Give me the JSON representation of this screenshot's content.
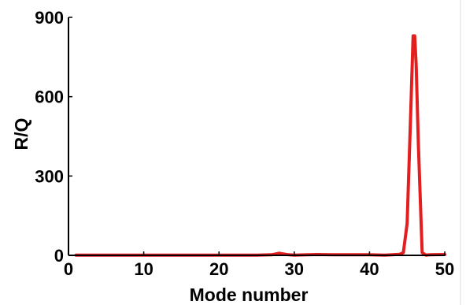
{
  "chart_data": {
    "type": "line",
    "title": "",
    "xlabel": "Mode number",
    "ylabel": "R/Q",
    "xlim": [
      0,
      50
    ],
    "ylim": [
      0,
      900
    ],
    "x_ticks": [
      0,
      10,
      20,
      30,
      40,
      50
    ],
    "y_ticks": [
      0,
      300,
      600,
      900
    ],
    "x_tick_labels": [
      "0",
      "10",
      "20",
      "30",
      "40",
      "50"
    ],
    "y_tick_labels": [
      "0",
      "300",
      "600",
      "900"
    ],
    "grid": false,
    "legend": "none",
    "series": [
      {
        "color": "#e31e1e",
        "x": [
          1,
          5,
          10,
          15,
          20,
          25,
          27,
          28,
          29,
          30,
          33,
          35,
          38,
          40,
          42,
          43,
          44,
          44.5,
          45,
          45.5,
          45.8,
          46,
          46.2,
          46.5,
          47,
          47.5,
          48,
          50
        ],
        "y": [
          1,
          1,
          1,
          1,
          1,
          1,
          2,
          8,
          3,
          1,
          3,
          2,
          2,
          2,
          1,
          2,
          4,
          10,
          120,
          560,
          830,
          830,
          720,
          420,
          10,
          1,
          2,
          3
        ]
      }
    ]
  }
}
